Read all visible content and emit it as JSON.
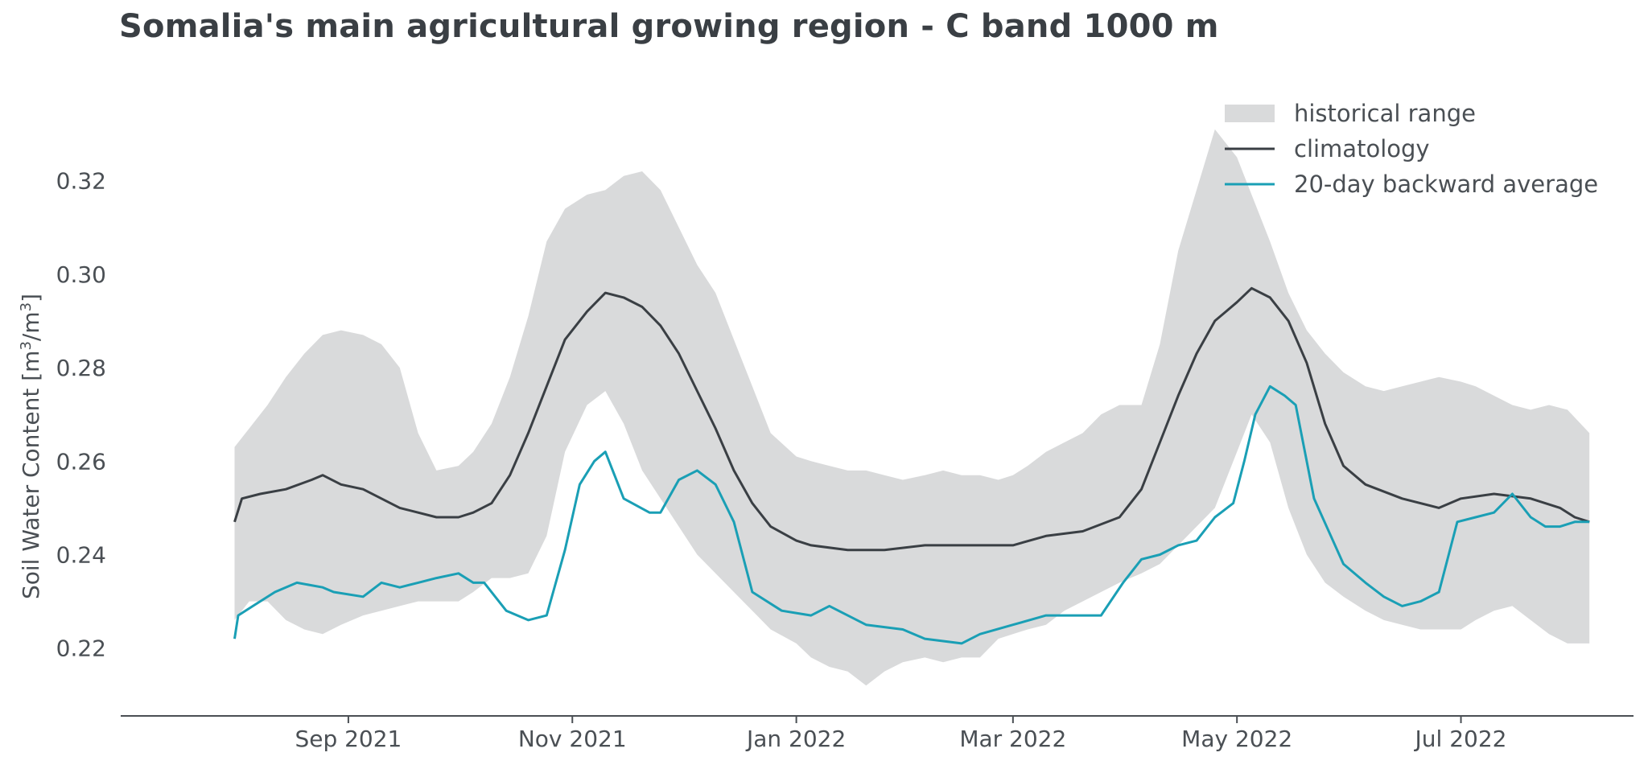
{
  "chart_data": {
    "type": "line",
    "title": "Somalia's main agricultural growing region - C band 1000 m",
    "ylabel": "Soil Water Content [m³/m³]",
    "ylabel_parts": {
      "prefix": "Soil Water Content [m",
      "sup1": "3",
      "mid": "/m",
      "sup2": "3",
      "suffix": "]"
    },
    "xlabel": "",
    "ylim": [
      0.2055,
      0.338
    ],
    "xlim": [
      "2021-07-01",
      "2022-08-17"
    ],
    "grid": false,
    "legend_position": "top-right",
    "x_ticks": [
      {
        "date": "2021-09-01",
        "label": "Sep 2021"
      },
      {
        "date": "2021-11-01",
        "label": "Nov 2021"
      },
      {
        "date": "2022-01-01",
        "label": "Jan 2022"
      },
      {
        "date": "2022-03-01",
        "label": "Mar 2022"
      },
      {
        "date": "2022-05-01",
        "label": "May 2022"
      },
      {
        "date": "2022-07-01",
        "label": "Jul 2022"
      }
    ],
    "y_ticks": [
      {
        "value": 0.22,
        "label": "0.22"
      },
      {
        "value": 0.24,
        "label": "0.24"
      },
      {
        "value": 0.26,
        "label": "0.26"
      },
      {
        "value": 0.28,
        "label": "0.28"
      },
      {
        "value": 0.3,
        "label": "0.30"
      },
      {
        "value": 0.32,
        "label": "0.32"
      }
    ],
    "legend": [
      {
        "label": "historical range",
        "kind": "band",
        "color": "#d9dadb"
      },
      {
        "label": "climatology",
        "kind": "line",
        "color": "#3a3f44"
      },
      {
        "label": "20-day backward average",
        "kind": "line",
        "color": "#1a9fb5"
      }
    ],
    "band": {
      "name": "historical range",
      "color": "#d9dadb",
      "x": [
        "2021-08-01",
        "2021-08-05",
        "2021-08-10",
        "2021-08-15",
        "2021-08-20",
        "2021-08-25",
        "2021-08-30",
        "2021-09-05",
        "2021-09-10",
        "2021-09-15",
        "2021-09-20",
        "2021-09-25",
        "2021-10-01",
        "2021-10-05",
        "2021-10-10",
        "2021-10-15",
        "2021-10-20",
        "2021-10-25",
        "2021-10-30",
        "2021-11-05",
        "2021-11-10",
        "2021-11-15",
        "2021-11-20",
        "2021-11-25",
        "2021-11-30",
        "2021-12-05",
        "2021-12-10",
        "2021-12-15",
        "2021-12-20",
        "2021-12-25",
        "2022-01-01",
        "2022-01-05",
        "2022-01-10",
        "2022-01-15",
        "2022-01-20",
        "2022-01-25",
        "2022-01-30",
        "2022-02-05",
        "2022-02-10",
        "2022-02-15",
        "2022-02-20",
        "2022-02-25",
        "2022-03-01",
        "2022-03-05",
        "2022-03-10",
        "2022-03-15",
        "2022-03-20",
        "2022-03-25",
        "2022-03-30",
        "2022-04-05",
        "2022-04-10",
        "2022-04-15",
        "2022-04-20",
        "2022-04-25",
        "2022-05-01",
        "2022-05-05",
        "2022-05-10",
        "2022-05-15",
        "2022-05-20",
        "2022-05-25",
        "2022-05-30",
        "2022-06-05",
        "2022-06-10",
        "2022-06-15",
        "2022-06-20",
        "2022-06-25",
        "2022-07-01",
        "2022-07-05",
        "2022-07-10",
        "2022-07-15",
        "2022-07-20",
        "2022-07-25",
        "2022-07-30",
        "2022-08-05"
      ],
      "upper": [
        0.263,
        0.267,
        0.272,
        0.278,
        0.283,
        0.287,
        0.288,
        0.287,
        0.285,
        0.28,
        0.266,
        0.258,
        0.259,
        0.262,
        0.268,
        0.278,
        0.291,
        0.307,
        0.314,
        0.317,
        0.318,
        0.321,
        0.322,
        0.318,
        0.31,
        0.302,
        0.296,
        0.286,
        0.276,
        0.266,
        0.261,
        0.26,
        0.259,
        0.258,
        0.258,
        0.257,
        0.256,
        0.257,
        0.258,
        0.257,
        0.257,
        0.256,
        0.257,
        0.259,
        0.262,
        0.264,
        0.266,
        0.27,
        0.272,
        0.272,
        0.285,
        0.305,
        0.318,
        0.331,
        0.325,
        0.317,
        0.307,
        0.296,
        0.288,
        0.283,
        0.279,
        0.276,
        0.275,
        0.276,
        0.277,
        0.278,
        0.277,
        0.276,
        0.274,
        0.272,
        0.271,
        0.272,
        0.271,
        0.266
      ],
      "lower": [
        0.226,
        0.23,
        0.23,
        0.226,
        0.224,
        0.223,
        0.225,
        0.227,
        0.228,
        0.229,
        0.23,
        0.23,
        0.23,
        0.232,
        0.235,
        0.235,
        0.236,
        0.244,
        0.262,
        0.272,
        0.275,
        0.268,
        0.258,
        0.252,
        0.246,
        0.24,
        0.236,
        0.232,
        0.228,
        0.224,
        0.221,
        0.218,
        0.216,
        0.215,
        0.212,
        0.215,
        0.217,
        0.218,
        0.217,
        0.218,
        0.218,
        0.222,
        0.223,
        0.224,
        0.225,
        0.228,
        0.23,
        0.232,
        0.234,
        0.236,
        0.238,
        0.242,
        0.246,
        0.25,
        0.262,
        0.27,
        0.264,
        0.25,
        0.24,
        0.234,
        0.231,
        0.228,
        0.226,
        0.225,
        0.224,
        0.224,
        0.224,
        0.226,
        0.228,
        0.229,
        0.226,
        0.223,
        0.221,
        0.221
      ]
    },
    "series": [
      {
        "name": "climatology",
        "color": "#3a3f44",
        "x": [
          "2021-08-01",
          "2021-08-03",
          "2021-08-08",
          "2021-08-15",
          "2021-08-22",
          "2021-08-25",
          "2021-08-30",
          "2021-09-05",
          "2021-09-15",
          "2021-09-25",
          "2021-10-01",
          "2021-10-05",
          "2021-10-10",
          "2021-10-15",
          "2021-10-20",
          "2021-10-25",
          "2021-10-30",
          "2021-11-05",
          "2021-11-10",
          "2021-11-15",
          "2021-11-20",
          "2021-11-25",
          "2021-11-30",
          "2021-12-05",
          "2021-12-10",
          "2021-12-15",
          "2021-12-20",
          "2021-12-25",
          "2022-01-01",
          "2022-01-05",
          "2022-01-15",
          "2022-01-25",
          "2022-02-05",
          "2022-02-15",
          "2022-02-25",
          "2022-03-01",
          "2022-03-10",
          "2022-03-20",
          "2022-03-30",
          "2022-04-05",
          "2022-04-10",
          "2022-04-15",
          "2022-04-20",
          "2022-04-25",
          "2022-05-01",
          "2022-05-05",
          "2022-05-10",
          "2022-05-15",
          "2022-05-20",
          "2022-05-25",
          "2022-05-30",
          "2022-06-05",
          "2022-06-15",
          "2022-06-25",
          "2022-07-01",
          "2022-07-10",
          "2022-07-20",
          "2022-07-28",
          "2022-08-01",
          "2022-08-05"
        ],
        "y": [
          0.247,
          0.252,
          0.253,
          0.254,
          0.256,
          0.257,
          0.255,
          0.254,
          0.25,
          0.248,
          0.248,
          0.249,
          0.251,
          0.257,
          0.266,
          0.276,
          0.286,
          0.292,
          0.296,
          0.295,
          0.293,
          0.289,
          0.283,
          0.275,
          0.267,
          0.258,
          0.251,
          0.246,
          0.243,
          0.242,
          0.241,
          0.241,
          0.242,
          0.242,
          0.242,
          0.242,
          0.244,
          0.245,
          0.248,
          0.254,
          0.264,
          0.274,
          0.283,
          0.29,
          0.294,
          0.297,
          0.295,
          0.29,
          0.281,
          0.268,
          0.259,
          0.255,
          0.252,
          0.25,
          0.252,
          0.253,
          0.252,
          0.25,
          0.248,
          0.247
        ]
      },
      {
        "name": "20-day backward average",
        "color": "#1a9fb5",
        "x": [
          "2021-08-01",
          "2021-08-02",
          "2021-08-06",
          "2021-08-12",
          "2021-08-18",
          "2021-08-25",
          "2021-08-28",
          "2021-09-05",
          "2021-09-10",
          "2021-09-15",
          "2021-09-20",
          "2021-09-25",
          "2021-10-01",
          "2021-10-05",
          "2021-10-08",
          "2021-10-14",
          "2021-10-20",
          "2021-10-25",
          "2021-10-30",
          "2021-11-03",
          "2021-11-07",
          "2021-11-10",
          "2021-11-15",
          "2021-11-22",
          "2021-11-25",
          "2021-11-30",
          "2021-12-05",
          "2021-12-10",
          "2021-12-15",
          "2021-12-20",
          "2021-12-28",
          "2022-01-05",
          "2022-01-10",
          "2022-01-15",
          "2022-01-20",
          "2022-01-30",
          "2022-02-05",
          "2022-02-15",
          "2022-02-20",
          "2022-03-01",
          "2022-03-10",
          "2022-03-20",
          "2022-03-25",
          "2022-03-31",
          "2022-04-05",
          "2022-04-10",
          "2022-04-15",
          "2022-04-20",
          "2022-04-25",
          "2022-04-30",
          "2022-05-03",
          "2022-05-06",
          "2022-05-10",
          "2022-05-14",
          "2022-05-17",
          "2022-05-22",
          "2022-05-30",
          "2022-06-05",
          "2022-06-10",
          "2022-06-15",
          "2022-06-20",
          "2022-06-25",
          "2022-06-30",
          "2022-07-05",
          "2022-07-10",
          "2022-07-15",
          "2022-07-20",
          "2022-07-24",
          "2022-07-28",
          "2022-08-01",
          "2022-08-05"
        ],
        "y": [
          0.222,
          0.227,
          0.229,
          0.232,
          0.234,
          0.233,
          0.232,
          0.231,
          0.234,
          0.233,
          0.234,
          0.235,
          0.236,
          0.234,
          0.234,
          0.228,
          0.226,
          0.227,
          0.241,
          0.255,
          0.26,
          0.262,
          0.252,
          0.249,
          0.249,
          0.256,
          0.258,
          0.255,
          0.247,
          0.232,
          0.228,
          0.227,
          0.229,
          0.227,
          0.225,
          0.224,
          0.222,
          0.221,
          0.223,
          0.225,
          0.227,
          0.227,
          0.227,
          0.234,
          0.239,
          0.24,
          0.242,
          0.243,
          0.248,
          0.251,
          0.26,
          0.27,
          0.276,
          0.274,
          0.272,
          0.252,
          0.238,
          0.234,
          0.231,
          0.229,
          0.23,
          0.232,
          0.247,
          0.248,
          0.249,
          0.253,
          0.248,
          0.246,
          0.246,
          0.247,
          0.247
        ]
      }
    ]
  }
}
